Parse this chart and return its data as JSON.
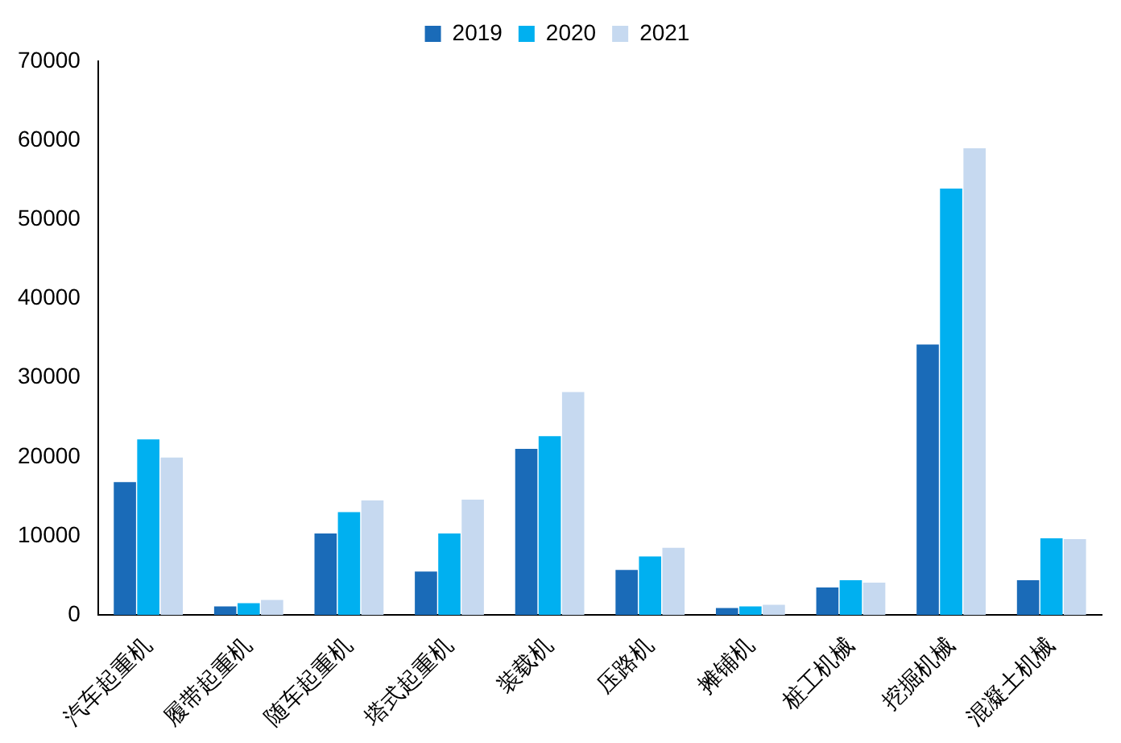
{
  "chart_data": {
    "type": "bar",
    "categories": [
      "汽车起重机",
      "履带起重机",
      "随车起重机",
      "塔式起重机",
      "装载机",
      "压路机",
      "摊铺机",
      "桩工机械",
      "挖掘机械",
      "混凝土机械"
    ],
    "series": [
      {
        "name": "2019",
        "color": "#1a6bb8",
        "values": [
          16800,
          1100,
          10300,
          5500,
          21000,
          5700,
          900,
          3500,
          34200,
          4400
        ]
      },
      {
        "name": "2020",
        "color": "#00b0f0",
        "values": [
          22200,
          1500,
          13000,
          10300,
          22600,
          7400,
          1100,
          4400,
          53900,
          9700
        ]
      },
      {
        "name": "2021",
        "color": "#c6d9f0",
        "values": [
          19900,
          1900,
          14500,
          14600,
          28200,
          8500,
          1300,
          4100,
          59000,
          9600
        ]
      }
    ],
    "ylim": [
      0,
      70000
    ],
    "yticks": [
      0,
      10000,
      20000,
      30000,
      40000,
      50000,
      60000,
      70000
    ],
    "grid": false,
    "legend": "top"
  }
}
